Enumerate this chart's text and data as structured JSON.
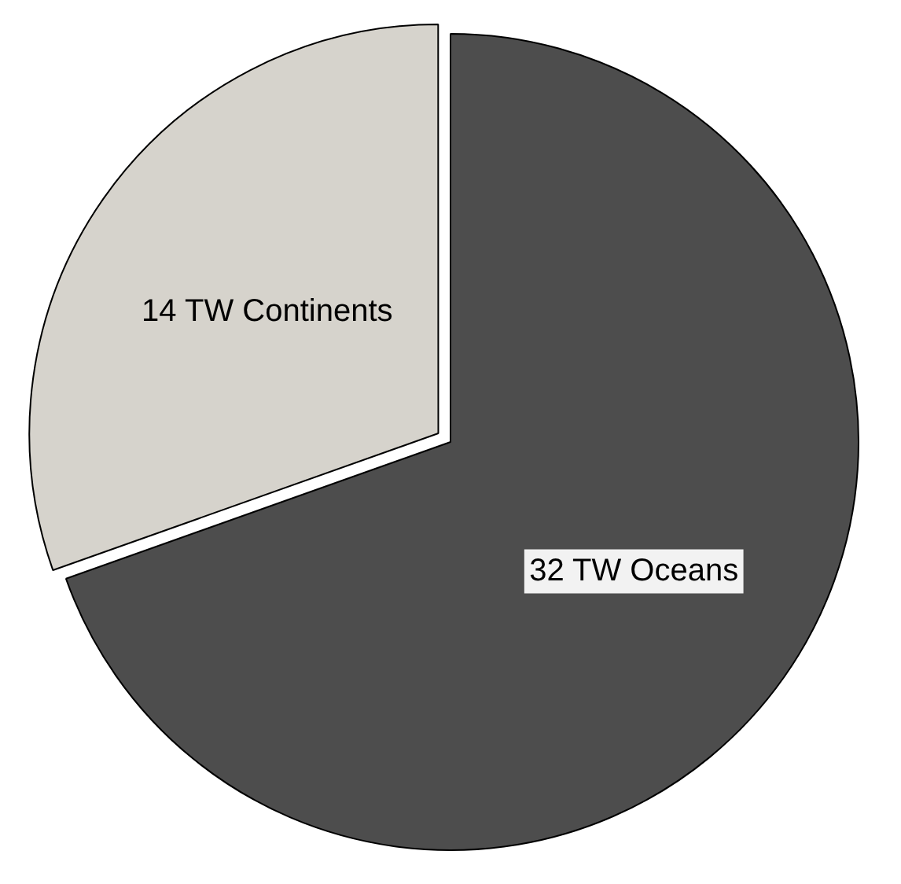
{
  "chart_data": {
    "type": "pie",
    "categories": [
      "32 TW Oceans",
      "14 TW Continents"
    ],
    "values": [
      32,
      14
    ],
    "colors": [
      "#4d4d4d",
      "#d6d3cc"
    ]
  }
}
